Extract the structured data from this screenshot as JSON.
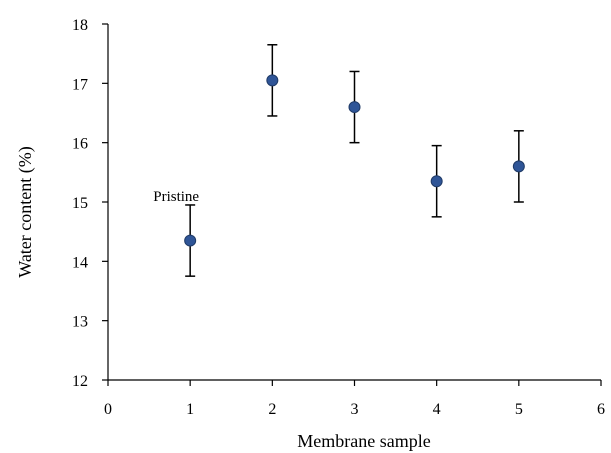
{
  "chart_data": {
    "type": "scatter",
    "title": "",
    "xlabel": "Membrane sample",
    "ylabel": "Water content (%)",
    "xlim": [
      0,
      6
    ],
    "ylim": [
      12,
      18
    ],
    "xticks": [
      "0",
      "1",
      "2",
      "3",
      "4",
      "5",
      "6"
    ],
    "yticks": [
      "12",
      "13",
      "14",
      "15",
      "16",
      "17",
      "18"
    ],
    "grid": false,
    "legend": "none",
    "marker_color": "#2f5597",
    "points": [
      {
        "x": 1,
        "y": 14.35,
        "err": 0.6
      },
      {
        "x": 2,
        "y": 17.05,
        "err": 0.6
      },
      {
        "x": 3,
        "y": 16.6,
        "err": 0.6
      },
      {
        "x": 4,
        "y": 15.35,
        "err": 0.6
      },
      {
        "x": 5,
        "y": 15.6,
        "err": 0.6
      }
    ],
    "annotations": [
      {
        "text": "Pristine",
        "x": 1,
        "y": 15.1
      }
    ]
  }
}
